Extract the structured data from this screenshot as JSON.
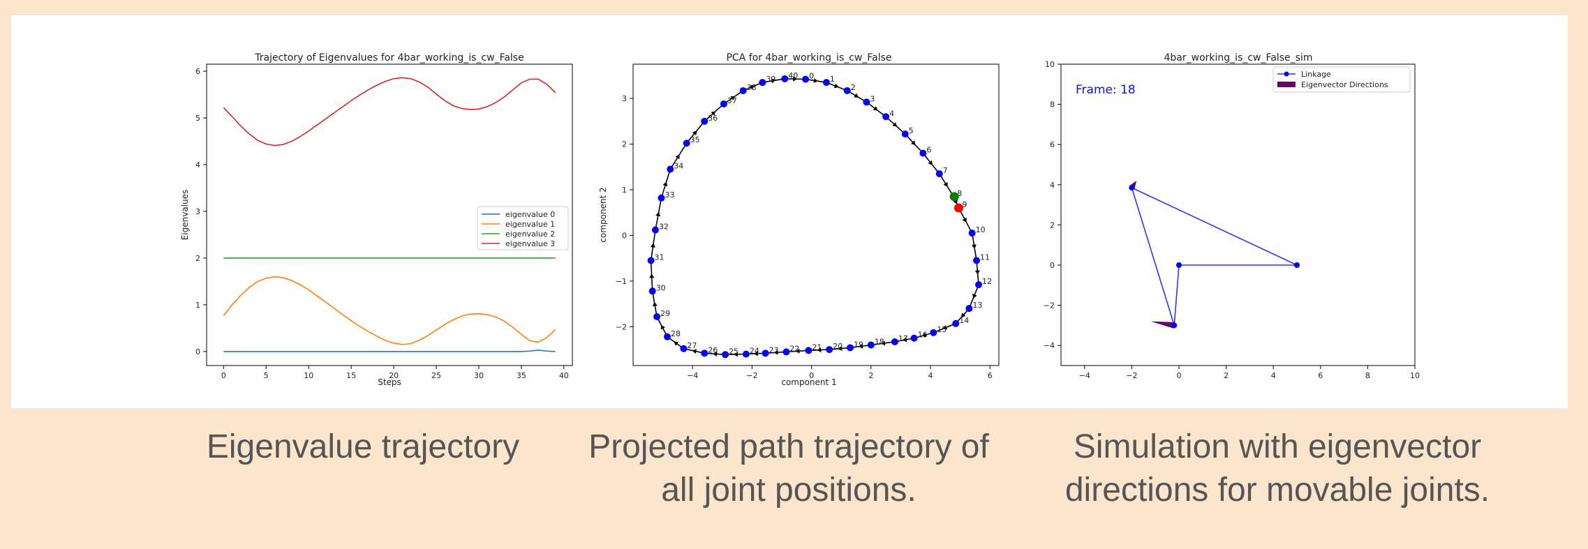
{
  "colors": {
    "background": "#fbe5cc",
    "panel": "#ffffff",
    "eigen0": "#1f77b4",
    "eigen1": "#ff7f0e",
    "eigen2": "#2ca02c",
    "eigen3": "#d62728",
    "node": "#0000ff",
    "link": "#3333ee",
    "arrow": "#6a006a",
    "start_marker": "#008000",
    "current_marker": "#ff0000",
    "caption": "#555555"
  },
  "captions": {
    "left": "Eigenvalue trajectory",
    "middle_line1": "Projected path trajectory of",
    "middle_line2": "all joint positions.",
    "right_line1": "Simulation with eigenvector",
    "right_line2": "directions for movable joints."
  },
  "chart_data": [
    {
      "type": "line",
      "title": "Trajectory of Eigenvalues for 4bar_working_is_cw_False",
      "xlabel": "Steps",
      "ylabel": "Eigenvalues",
      "xlim": [
        -2,
        41
      ],
      "ylim": [
        -0.3,
        6.15
      ],
      "xticks": [
        0,
        5,
        10,
        15,
        20,
        25,
        30,
        35,
        40
      ],
      "yticks": [
        0,
        1,
        2,
        3,
        4,
        5,
        6
      ],
      "grid": false,
      "legend_position": "right",
      "x": [
        0,
        1,
        2,
        3,
        4,
        5,
        6,
        7,
        8,
        9,
        10,
        11,
        12,
        13,
        14,
        15,
        16,
        17,
        18,
        19,
        20,
        21,
        22,
        23,
        24,
        25,
        26,
        27,
        28,
        29,
        30,
        31,
        32,
        33,
        34,
        35,
        36,
        37,
        38,
        39
      ],
      "series": [
        {
          "name": "eigenvalue 0",
          "color": "eigen0",
          "values": [
            0,
            0,
            0,
            0,
            0,
            0,
            0,
            0,
            0,
            0,
            0,
            0,
            0,
            0,
            0,
            0,
            0,
            0,
            0,
            0,
            0,
            0,
            0,
            0,
            0,
            0,
            0,
            0,
            0,
            0,
            0,
            0,
            0,
            0,
            0,
            0,
            0.01,
            0.03,
            0.01,
            0
          ]
        },
        {
          "name": "eigenvalue 1",
          "color": "eigen1",
          "values": [
            0.77,
            1.0,
            1.2,
            1.37,
            1.5,
            1.57,
            1.6,
            1.58,
            1.52,
            1.43,
            1.32,
            1.19,
            1.06,
            0.92,
            0.79,
            0.66,
            0.54,
            0.43,
            0.33,
            0.24,
            0.18,
            0.15,
            0.17,
            0.24,
            0.34,
            0.46,
            0.58,
            0.68,
            0.76,
            0.8,
            0.81,
            0.79,
            0.74,
            0.65,
            0.52,
            0.37,
            0.23,
            0.2,
            0.3,
            0.47
          ]
        },
        {
          "name": "eigenvalue 2",
          "color": "eigen2",
          "values": [
            2,
            2,
            2,
            2,
            2,
            2,
            2,
            2,
            2,
            2,
            2,
            2,
            2,
            2,
            2,
            2,
            2,
            2,
            2,
            2,
            2,
            2,
            2,
            2,
            2,
            2,
            2,
            2,
            2,
            2,
            2,
            2,
            2,
            2,
            2,
            2,
            2,
            2,
            2,
            2
          ]
        },
        {
          "name": "eigenvalue 3",
          "color": "eigen3",
          "values": [
            5.22,
            5.03,
            4.83,
            4.66,
            4.52,
            4.44,
            4.41,
            4.43,
            4.5,
            4.6,
            4.72,
            4.85,
            4.98,
            5.11,
            5.24,
            5.37,
            5.49,
            5.6,
            5.7,
            5.78,
            5.84,
            5.86,
            5.84,
            5.77,
            5.66,
            5.51,
            5.37,
            5.26,
            5.2,
            5.18,
            5.19,
            5.24,
            5.33,
            5.45,
            5.6,
            5.75,
            5.83,
            5.83,
            5.72,
            5.54
          ]
        }
      ]
    },
    {
      "type": "scatter",
      "title": "PCA for 4bar_working_is_cw_False",
      "xlabel": "component 1",
      "ylabel": "component 2",
      "xlim": [
        -6,
        6.3
      ],
      "ylim": [
        -2.85,
        3.75
      ],
      "xticks": [
        -4,
        -2,
        0,
        2,
        4,
        6
      ],
      "yticks": [
        -2,
        -1,
        0,
        1,
        2,
        3
      ],
      "grid": false,
      "points": [
        {
          "label": "0",
          "x": -0.2,
          "y": 3.42
        },
        {
          "label": "1",
          "x": 0.5,
          "y": 3.35
        },
        {
          "label": "2",
          "x": 1.2,
          "y": 3.17
        },
        {
          "label": "3",
          "x": 1.85,
          "y": 2.92
        },
        {
          "label": "4",
          "x": 2.5,
          "y": 2.6
        },
        {
          "label": "5",
          "x": 3.15,
          "y": 2.22
        },
        {
          "label": "6",
          "x": 3.75,
          "y": 1.8
        },
        {
          "label": "7",
          "x": 4.3,
          "y": 1.35
        },
        {
          "label": "8",
          "x": 4.78,
          "y": 0.85
        },
        {
          "label": "9",
          "x": 4.95,
          "y": 0.6
        },
        {
          "label": "10",
          "x": 5.4,
          "y": 0.05
        },
        {
          "label": "11",
          "x": 5.55,
          "y": -0.55
        },
        {
          "label": "12",
          "x": 5.62,
          "y": -1.08
        },
        {
          "label": "13",
          "x": 5.3,
          "y": -1.6
        },
        {
          "label": "14",
          "x": 4.85,
          "y": -1.93
        },
        {
          "label": "15",
          "x": 4.1,
          "y": -2.13
        },
        {
          "label": "16",
          "x": 3.45,
          "y": -2.25
        },
        {
          "label": "17",
          "x": 2.8,
          "y": -2.33
        },
        {
          "label": "18",
          "x": 2.0,
          "y": -2.4
        },
        {
          "label": "19",
          "x": 1.3,
          "y": -2.46
        },
        {
          "label": "20",
          "x": 0.6,
          "y": -2.5
        },
        {
          "label": "21",
          "x": -0.1,
          "y": -2.52
        },
        {
          "label": "22",
          "x": -0.85,
          "y": -2.55
        },
        {
          "label": "23",
          "x": -1.55,
          "y": -2.58
        },
        {
          "label": "24",
          "x": -2.2,
          "y": -2.6
        },
        {
          "label": "25",
          "x": -2.9,
          "y": -2.61
        },
        {
          "label": "26",
          "x": -3.6,
          "y": -2.58
        },
        {
          "label": "27",
          "x": -4.3,
          "y": -2.48
        },
        {
          "label": "28",
          "x": -4.85,
          "y": -2.22
        },
        {
          "label": "29",
          "x": -5.2,
          "y": -1.78
        },
        {
          "label": "30",
          "x": -5.35,
          "y": -1.22
        },
        {
          "label": "31",
          "x": -5.4,
          "y": -0.55
        },
        {
          "label": "32",
          "x": -5.25,
          "y": 0.12
        },
        {
          "label": "33",
          "x": -5.05,
          "y": 0.82
        },
        {
          "label": "34",
          "x": -4.75,
          "y": 1.45
        },
        {
          "label": "35",
          "x": -4.2,
          "y": 2.02
        },
        {
          "label": "36",
          "x": -3.6,
          "y": 2.5
        },
        {
          "label": "37",
          "x": -2.95,
          "y": 2.88
        },
        {
          "label": "38",
          "x": -2.3,
          "y": 3.17
        },
        {
          "label": "39",
          "x": -1.65,
          "y": 3.35
        },
        {
          "label": "40",
          "x": -0.9,
          "y": 3.43
        }
      ],
      "start_point": {
        "x": 4.8,
        "y": 0.85
      },
      "current_point": {
        "x": 4.95,
        "y": 0.6
      }
    },
    {
      "type": "scatter",
      "title": "4bar_working_is_cw_False_sim",
      "frame_text": "Frame: 18",
      "xlim": [
        -5,
        10
      ],
      "ylim": [
        -5,
        10
      ],
      "xticks": [
        -4,
        -2,
        0,
        2,
        4,
        6,
        8,
        10
      ],
      "yticks": [
        -4,
        -2,
        0,
        2,
        4,
        6,
        8,
        10
      ],
      "grid": false,
      "legend_position": "top-right",
      "legend": [
        "Linkage",
        "Eigenvector Directions"
      ],
      "nodes": [
        {
          "x": 0,
          "y": 0
        },
        {
          "x": 5,
          "y": 0
        },
        {
          "x": -2,
          "y": 3.85
        },
        {
          "x": -0.2,
          "y": -3
        }
      ],
      "links": [
        [
          0,
          1
        ],
        [
          1,
          2
        ],
        [
          2,
          3
        ],
        [
          3,
          0
        ]
      ],
      "arrows": [
        {
          "x": -2,
          "y": 3.85,
          "dx": 0.2,
          "dy": 0.35
        },
        {
          "x": -0.2,
          "y": -3,
          "dx": -1.0,
          "dy": 0.2
        }
      ]
    }
  ]
}
